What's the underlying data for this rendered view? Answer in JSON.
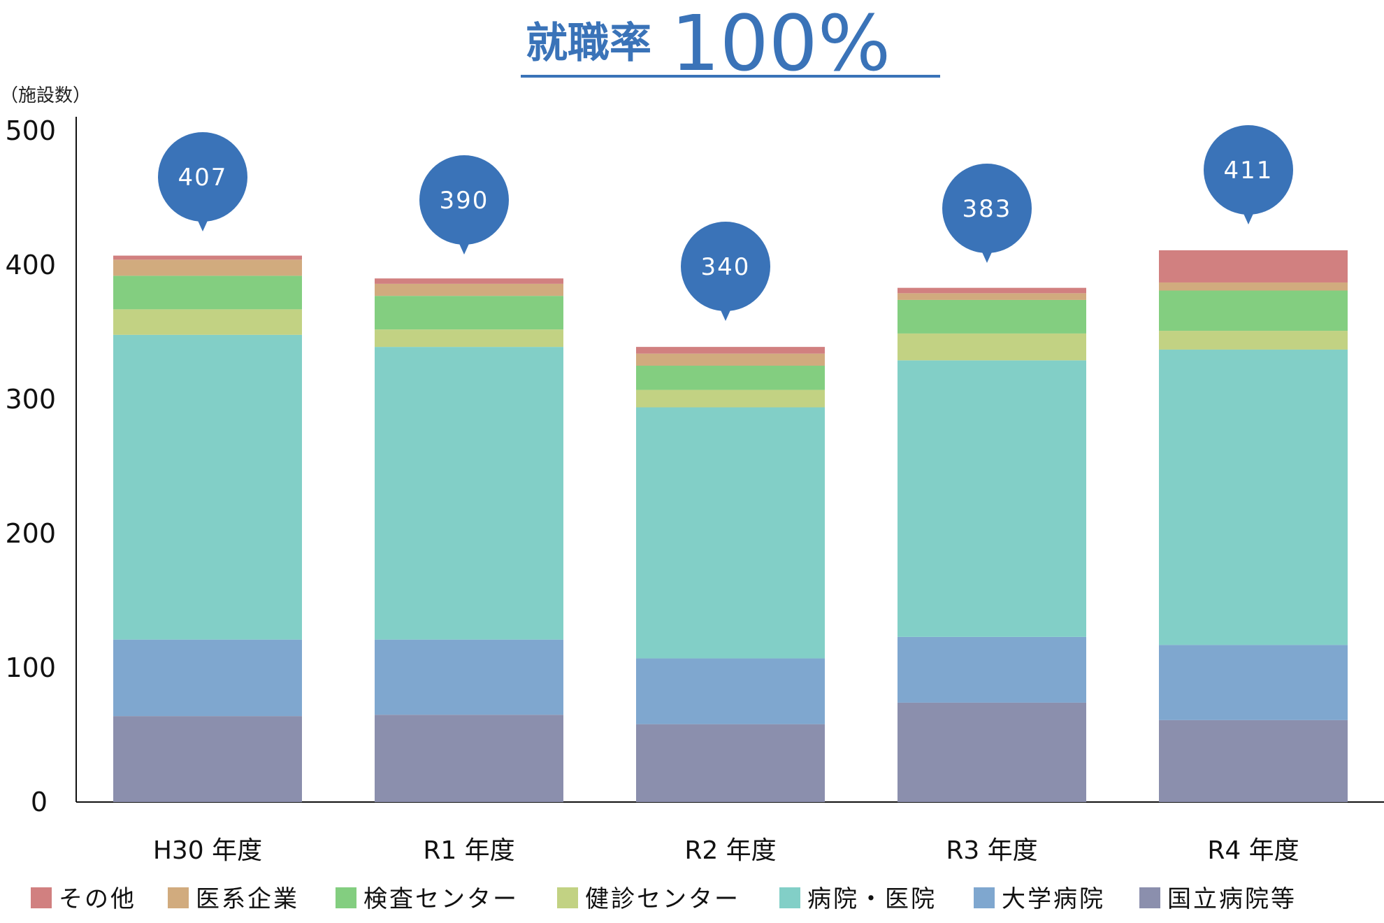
{
  "chart_data": {
    "type": "bar",
    "stacked": true,
    "title": "就職率 100%",
    "title_parts": {
      "prefix": "就職率",
      "value": "100%"
    },
    "ylabel": "（施設数）",
    "ylim": [
      0,
      500
    ],
    "yticks": [
      0,
      100,
      200,
      300,
      400,
      500
    ],
    "categories": [
      "H30 年度",
      "R1 年度",
      "R2 年度",
      "R3 年度",
      "R4 年度"
    ],
    "totals": [
      407,
      390,
      340,
      383,
      411
    ],
    "legend_position": "bottom",
    "grid": false,
    "series": [
      {
        "name": "国立病院等",
        "color": "#8b8fad",
        "values": [
          64,
          65,
          58,
          74,
          61
        ]
      },
      {
        "name": "大学病院",
        "color": "#7fa7cf",
        "values": [
          57,
          56,
          49,
          49,
          56
        ]
      },
      {
        "name": "病院・医院",
        "color": "#82cfc7",
        "values": [
          227,
          218,
          187,
          206,
          220
        ]
      },
      {
        "name": "健診センター",
        "color": "#c2d283",
        "values": [
          19,
          13,
          13,
          20,
          14
        ]
      },
      {
        "name": "検査センター",
        "color": "#83ce80",
        "values": [
          25,
          25,
          18,
          25,
          30
        ]
      },
      {
        "name": "医系企業",
        "color": "#d1ab7e",
        "values": [
          12,
          9,
          9,
          5,
          6
        ]
      },
      {
        "name": "その他",
        "color": "#d18080",
        "values": [
          3,
          4,
          5,
          4,
          24
        ]
      }
    ],
    "bubble_color": "#3a73b8",
    "accent_color": "#3a73b8"
  }
}
